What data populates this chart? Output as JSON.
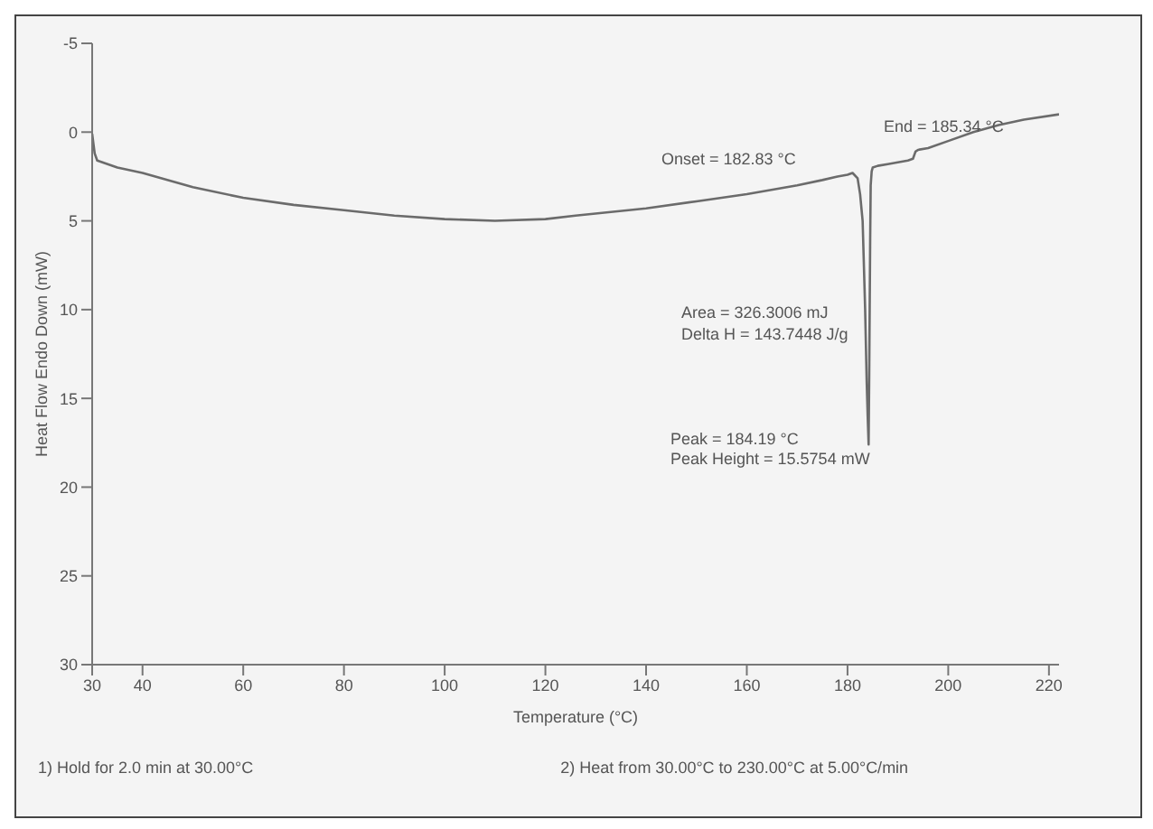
{
  "chart_data": {
    "type": "line",
    "xlabel": "Temperature (°C)",
    "ylabel": "Heat Flow Endo Down (mW)",
    "x": [
      30,
      30.5,
      31,
      35,
      40,
      50,
      60,
      70,
      80,
      90,
      100,
      110,
      120,
      126,
      140,
      150,
      160,
      170,
      175,
      178,
      180,
      181,
      182,
      182.5,
      183,
      183.5,
      183.8,
      184,
      184.19,
      184.3,
      184.4,
      184.5,
      184.6,
      184.8,
      185,
      186,
      188,
      190,
      192,
      193,
      193.5,
      194,
      196,
      200,
      205,
      210,
      215,
      222
    ],
    "series": [
      {
        "color": "#6b6b6b",
        "values": [
          0.1,
          1.2,
          1.6,
          2,
          2.3,
          3.1,
          3.7,
          4.1,
          4.4,
          4.7,
          4.9,
          5,
          4.9,
          4.7,
          4.3,
          3.9,
          3.5,
          3,
          2.7,
          2.5,
          2.4,
          2.3,
          2.6,
          3.5,
          5,
          10,
          14,
          16,
          17.6,
          14,
          10,
          6,
          3,
          2.2,
          2,
          1.9,
          1.8,
          1.7,
          1.6,
          1.5,
          1.1,
          1,
          0.9,
          0.5,
          0,
          -0.4,
          -0.7,
          -1
        ]
      }
    ],
    "xlim": [
      30,
      222
    ],
    "xticks": [
      30,
      40,
      60,
      80,
      100,
      120,
      140,
      160,
      180,
      200,
      220
    ],
    "ylim": [
      30,
      -5
    ],
    "yticks": [
      -5,
      0,
      5,
      10,
      15,
      20,
      25,
      30
    ],
    "grid": false,
    "legend": false,
    "marker": "none",
    "line_style": "solid",
    "annotations": [
      "Onset = 182.83 °C",
      "End = 185.34 °C",
      "Area = 326.3006 mJ",
      "Delta H = 143.7448 J/g",
      "Peak = 184.19 °C",
      "Peak Height = 15.5754 mW",
      "1) Hold for 2.0 min at 30.00°C",
      "2) Heat from 30.00°C to 230.00°C at 5.00°C/min"
    ]
  }
}
